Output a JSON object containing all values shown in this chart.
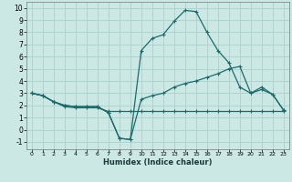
{
  "xlabel": "Humidex (Indice chaleur)",
  "bg_color": "#cce8e5",
  "grid_color": "#aacfcc",
  "line_color": "#1a6b6b",
  "xlim": [
    -0.5,
    23.5
  ],
  "ylim": [
    -1.6,
    10.5
  ],
  "xticks": [
    0,
    1,
    2,
    3,
    4,
    5,
    6,
    7,
    8,
    9,
    10,
    11,
    12,
    13,
    14,
    15,
    16,
    17,
    18,
    19,
    20,
    21,
    22,
    23
  ],
  "yticks": [
    -1,
    0,
    1,
    2,
    3,
    4,
    5,
    6,
    7,
    8,
    9,
    10
  ],
  "series1_x": [
    0,
    1,
    2,
    3,
    4,
    5,
    6,
    7,
    8,
    9,
    10,
    11,
    12,
    13,
    14,
    15,
    16,
    17,
    18,
    19,
    20,
    21,
    22,
    23
  ],
  "series1_y": [
    3.0,
    2.8,
    2.3,
    1.9,
    1.8,
    1.8,
    1.8,
    1.5,
    1.5,
    1.5,
    1.5,
    1.5,
    1.5,
    1.5,
    1.5,
    1.5,
    1.5,
    1.5,
    1.5,
    1.5,
    1.5,
    1.5,
    1.5,
    1.5
  ],
  "series2_x": [
    0,
    1,
    2,
    3,
    4,
    5,
    6,
    7,
    8,
    9,
    10,
    11,
    12,
    13,
    14,
    15,
    16,
    17,
    18,
    19,
    20,
    21,
    22,
    23
  ],
  "series2_y": [
    3.0,
    2.8,
    2.3,
    2.0,
    1.9,
    1.9,
    1.9,
    1.4,
    -0.7,
    -0.8,
    2.5,
    2.8,
    3.0,
    3.5,
    3.8,
    4.0,
    4.3,
    4.6,
    5.0,
    5.2,
    3.0,
    3.3,
    2.9,
    1.6
  ],
  "series3_x": [
    0,
    1,
    2,
    3,
    4,
    5,
    6,
    7,
    8,
    9,
    10,
    11,
    12,
    13,
    14,
    15,
    16,
    17,
    18,
    19,
    20,
    21,
    22,
    23
  ],
  "series3_y": [
    3.0,
    2.8,
    2.3,
    2.0,
    1.9,
    1.9,
    1.9,
    1.4,
    -0.7,
    -0.8,
    6.5,
    7.5,
    7.8,
    8.9,
    9.8,
    9.7,
    8.0,
    6.5,
    5.5,
    3.5,
    3.0,
    3.5,
    2.9,
    1.6
  ]
}
